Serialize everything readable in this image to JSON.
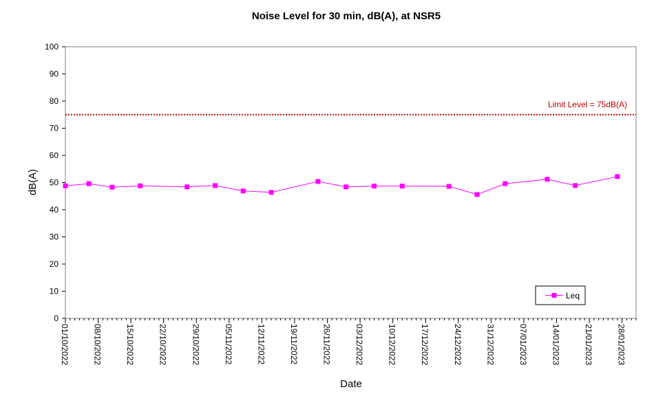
{
  "chart_data": {
    "type": "line",
    "title": "Noise Level for 30 min, dB(A), at NSR5",
    "xlabel": "Date",
    "ylabel": "dB(A)",
    "ylim": [
      0,
      100
    ],
    "yticks": [
      0,
      10,
      20,
      30,
      40,
      50,
      60,
      70,
      80,
      90,
      100
    ],
    "xlim": [
      "2022-10-01",
      "2023-01-31"
    ],
    "xtick_dates": [
      "2022-10-01",
      "2022-10-08",
      "2022-10-15",
      "2022-10-22",
      "2022-10-29",
      "2022-11-05",
      "2022-11-12",
      "2022-11-19",
      "2022-11-26",
      "2022-12-03",
      "2022-12-10",
      "2022-12-17",
      "2022-12-24",
      "2022-12-31",
      "2023-01-07",
      "2023-01-14",
      "2023-01-21",
      "2023-01-28"
    ],
    "xtick_labels": [
      "01/10/2022",
      "08/10/2022",
      "15/10/2022",
      "22/10/2022",
      "29/10/2022",
      "05/11/2022",
      "12/11/2022",
      "19/11/2022",
      "26/11/2022",
      "03/12/2022",
      "10/12/2022",
      "17/12/2022",
      "24/12/2022",
      "31/12/2022",
      "07/01/2023",
      "14/01/2023",
      "21/01/2023",
      "28/01/2023"
    ],
    "grid": false,
    "legend_position": "bottom-right",
    "series": [
      {
        "name": "Leq",
        "color": "#ff00ff",
        "marker": "square",
        "x": [
          "2022-10-01",
          "2022-10-06",
          "2022-10-11",
          "2022-10-17",
          "2022-10-27",
          "2022-11-02",
          "2022-11-08",
          "2022-11-14",
          "2022-11-24",
          "2022-11-30",
          "2022-12-06",
          "2022-12-12",
          "2022-12-22",
          "2022-12-28",
          "2023-01-03",
          "2023-01-12",
          "2023-01-18",
          "2023-01-27"
        ],
        "y": [
          48.8,
          49.6,
          48.3,
          48.8,
          48.4,
          48.9,
          46.9,
          46.4,
          50.4,
          48.4,
          48.7,
          48.7,
          48.6,
          45.6,
          49.6,
          51.2,
          48.9,
          52.2
        ]
      }
    ],
    "reference_line": {
      "value": 75,
      "label": "Limit Level = 75dB(A)",
      "color": "#c00000",
      "style": "dotted"
    }
  }
}
